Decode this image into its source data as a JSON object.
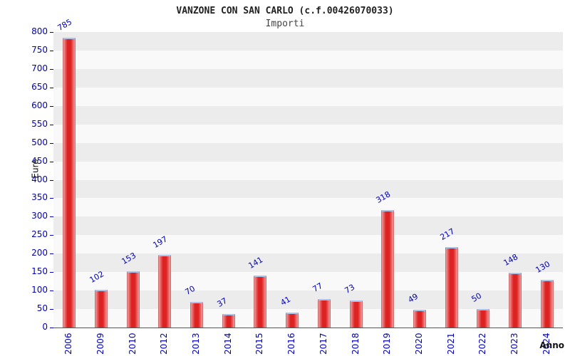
{
  "title": "VANZONE CON SAN CARLO (c.f.00426070033)",
  "subtitle": "Importi",
  "chart_data": {
    "type": "bar",
    "title": "VANZONE CON SAN CARLO (c.f.00426070033)",
    "subtitle": "Importi",
    "categories": [
      "2006",
      "2009",
      "2010",
      "2012",
      "2013",
      "2014",
      "2015",
      "2016",
      "2017",
      "2018",
      "2019",
      "2020",
      "2021",
      "2022",
      "2023",
      "2024"
    ],
    "values": [
      785,
      102,
      153,
      197,
      70,
      37,
      141,
      41,
      77,
      73,
      318,
      49,
      217,
      50,
      148,
      130
    ],
    "xlabel": "Anno",
    "ylabel": "Euro",
    "ylim": [
      0,
      800
    ],
    "ytick_step": 50,
    "grid": "alternating-horizontal-bands",
    "legend": "none",
    "colors": {
      "bar_fill": "#dd2222",
      "bar_fill_light": "#f29a9a",
      "bar_cap": "#a8c4ee",
      "value_label": "#0000bb",
      "tick_label": "#0000bb",
      "band_dark": "#ececec",
      "band_light": "#f9f9f9",
      "title_color": "#222222"
    }
  }
}
